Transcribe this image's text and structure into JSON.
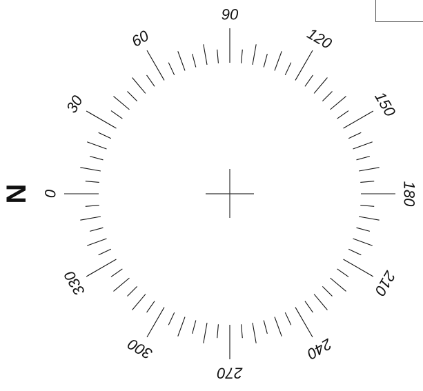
{
  "compass": {
    "ticks": {
      "start_deg": 0,
      "end_deg": 355,
      "step_deg": 5
    },
    "labels": [
      {
        "deg": 0,
        "text": "0"
      },
      {
        "deg": 30,
        "text": "30"
      },
      {
        "deg": 60,
        "text": "60"
      },
      {
        "deg": 90,
        "text": "90"
      },
      {
        "deg": 120,
        "text": "120"
      },
      {
        "deg": 150,
        "text": "150"
      },
      {
        "deg": 180,
        "text": "180"
      },
      {
        "deg": 210,
        "text": "210"
      },
      {
        "deg": 240,
        "text": "240"
      },
      {
        "deg": 270,
        "text": "270"
      },
      {
        "deg": 300,
        "text": "300"
      },
      {
        "deg": 330,
        "text": "330"
      }
    ],
    "north_label": "N",
    "colors": {
      "ink": "#111111",
      "background": "#ffffff"
    }
  }
}
